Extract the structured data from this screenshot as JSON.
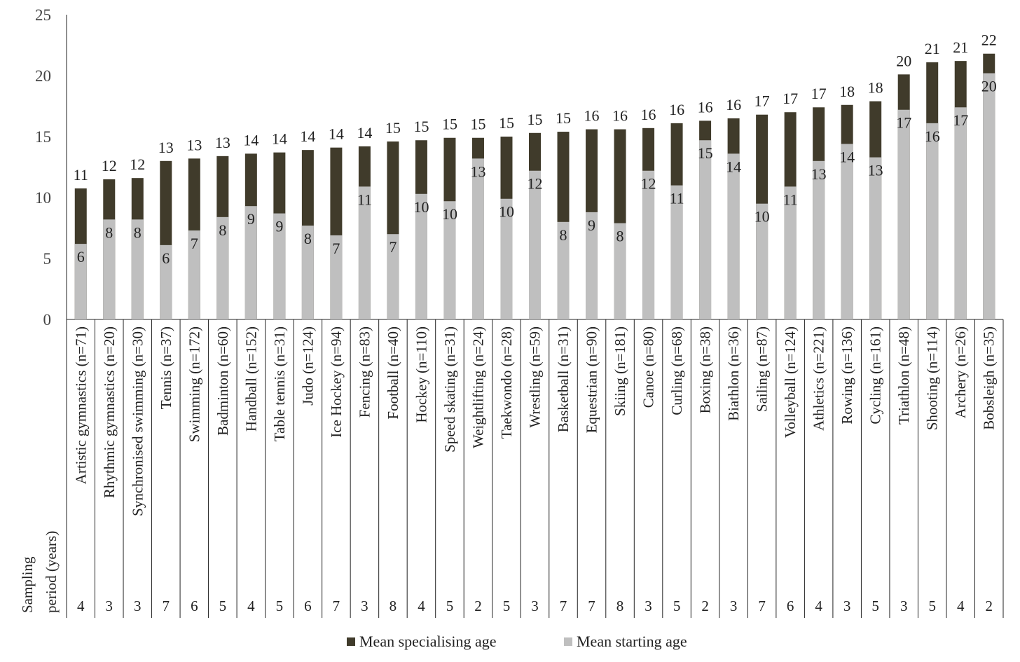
{
  "chart_data": {
    "type": "bar",
    "categories": [
      "Artistic gymnastics (n=71)",
      "Rhythmic gymnastics (n=20)",
      "Synchronised swimming (n=30)",
      "Tennis (n=37)",
      "Swimming (n=172)",
      "Badminton (n=60)",
      "Handball (n=152)",
      "Table tennis (n=31)",
      "Judo (n=124)",
      "Ice Hockey (n=94)",
      "Fencing (n=83)",
      "Football (n=40)",
      "Hockey (n=110)",
      "Speed skating (n=31)",
      "Weightlifting (n=24)",
      "Taekwondo (n=28)",
      "Wrestling (n=59)",
      "Basketball (n=31)",
      "Equestrian (n=90)",
      "Skiing (n=181)",
      "Canoe (n=80)",
      "Curling (n=68)",
      "Boxing (n=38)",
      "Biathlon (n=36)",
      "Sailing (n=87)",
      "Volleyball (n=124)",
      "Athletics (n=221)",
      "Rowing (n=136)",
      "Cycling (n=161)",
      "Triathlon (n=48)",
      "Shooting (n=114)",
      "Archery (n=26)",
      "Bobsleigh (n=35)"
    ],
    "series": [
      {
        "name": "Mean specialising age",
        "color": "#403b2b",
        "values": [
          10.75,
          11.5,
          11.6,
          13.0,
          13.2,
          13.4,
          13.6,
          13.7,
          13.9,
          14.1,
          14.2,
          14.6,
          14.7,
          14.9,
          14.9,
          15.0,
          15.3,
          15.4,
          15.6,
          15.6,
          15.7,
          16.1,
          16.3,
          16.5,
          16.8,
          17.0,
          17.4,
          17.6,
          17.9,
          20.1,
          21.1,
          21.2,
          21.8
        ],
        "value_labels": [
          "11",
          "12",
          "12",
          "13",
          "13",
          "13",
          "14",
          "14",
          "14",
          "14",
          "14",
          "15",
          "15",
          "15",
          "15",
          "15",
          "15",
          "15",
          "16",
          "16",
          "16",
          "16",
          "16",
          "16",
          "17",
          "17",
          "17",
          "18",
          "18",
          "20",
          "21",
          "21",
          "22"
        ]
      },
      {
        "name": "Mean starting age",
        "color": "#bfbfbf",
        "values": [
          6.2,
          8.2,
          8.2,
          6.1,
          7.3,
          8.4,
          9.3,
          8.7,
          7.7,
          6.9,
          10.9,
          7.0,
          10.3,
          9.7,
          13.2,
          9.9,
          12.2,
          8.0,
          8.8,
          7.9,
          12.2,
          11.0,
          14.7,
          13.6,
          9.5,
          10.9,
          13.0,
          14.4,
          13.3,
          17.2,
          16.1,
          17.4,
          20.2
        ],
        "value_labels": [
          "6",
          "8",
          "8",
          "6",
          "7",
          "8",
          "9",
          "9",
          "8",
          "7",
          "11",
          "7",
          "10",
          "10",
          "13",
          "10",
          "12",
          "8",
          "9",
          "8",
          "12",
          "11",
          "15",
          "14",
          "10",
          "11",
          "13",
          "14",
          "13",
          "17",
          "16",
          "17",
          "20"
        ]
      }
    ],
    "sampling_label": [
      "Sampling",
      "period (years)"
    ],
    "sampling_period": [
      "4",
      "3",
      "3",
      "7",
      "6",
      "5",
      "4",
      "5",
      "6",
      "7",
      "3",
      "8",
      "4",
      "5",
      "2",
      "5",
      "3",
      "7",
      "7",
      "8",
      "3",
      "5",
      "2",
      "3",
      "7",
      "6",
      "4",
      "3",
      "5",
      "3",
      "5",
      "4",
      "2"
    ],
    "ylim": [
      0,
      25
    ],
    "yticks": [
      0,
      5,
      10,
      15,
      20,
      25
    ],
    "grid": false,
    "legend": "bottom"
  }
}
